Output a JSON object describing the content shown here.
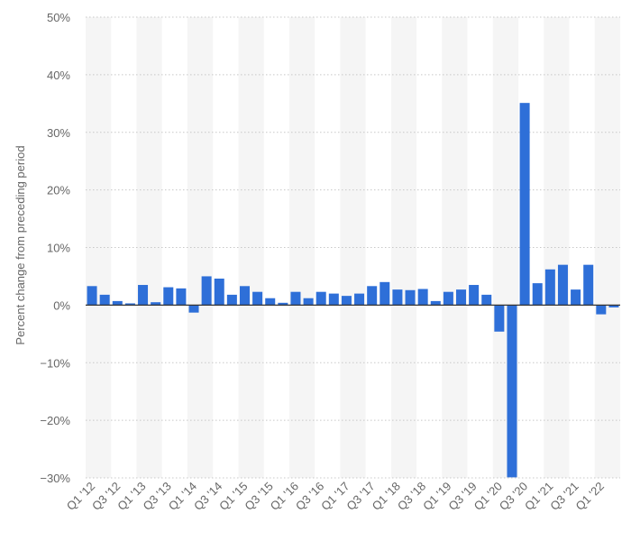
{
  "chart_data": {
    "type": "bar",
    "title": "",
    "xlabel": "",
    "ylabel": "Percent change from preceding period",
    "ylim": [
      -30,
      50
    ],
    "yticks": [
      50,
      40,
      30,
      20,
      10,
      0,
      -10,
      -20,
      -30
    ],
    "ytick_labels": [
      "50%",
      "40%",
      "30%",
      "20%",
      "10%",
      "0%",
      "−10%",
      "−20%",
      "−30%"
    ],
    "grid": true,
    "legend": "none",
    "bar_color": "#2e6fd8",
    "categories": [
      "Q1 '12",
      "Q2 '12",
      "Q3 '12",
      "Q4 '12",
      "Q1 '13",
      "Q2 '13",
      "Q3 '13",
      "Q4 '13",
      "Q1 '14",
      "Q2 '14",
      "Q3 '14",
      "Q4 '14",
      "Q1 '15",
      "Q2 '15",
      "Q3 '15",
      "Q4 '15",
      "Q1 '16",
      "Q2 '16",
      "Q3 '16",
      "Q4 '16",
      "Q1 '17",
      "Q2 '17",
      "Q3 '17",
      "Q4 '17",
      "Q1 '18",
      "Q2 '18",
      "Q3 '18",
      "Q4 '18",
      "Q1 '19",
      "Q2 '19",
      "Q3 '19",
      "Q4 '19",
      "Q1 '20",
      "Q2 '20",
      "Q3 '20",
      "Q4 '20",
      "Q1 '21",
      "Q2 '21",
      "Q3 '21",
      "Q4 '21",
      "Q1 '22",
      "Q2 '22"
    ],
    "shown_tick_labels": [
      "Q1 '12",
      "Q3 '12",
      "Q1 '13",
      "Q3 '13",
      "Q1 '14",
      "Q3 '14",
      "Q1 '15",
      "Q3 '15",
      "Q1 '16",
      "Q3 '16",
      "Q1 '17",
      "Q3 '17",
      "Q1 '18",
      "Q3 '18",
      "Q1 '19",
      "Q3 '19",
      "Q1 '20",
      "Q3 '20",
      "Q1 '21",
      "Q3 '21",
      "Q1 '22"
    ],
    "values": [
      3.3,
      1.8,
      0.7,
      0.3,
      3.5,
      0.5,
      3.1,
      2.9,
      -1.3,
      5.0,
      4.6,
      1.8,
      3.3,
      2.3,
      1.2,
      0.4,
      2.3,
      1.2,
      2.3,
      2.0,
      1.6,
      2.0,
      3.3,
      4.0,
      2.7,
      2.6,
      2.8,
      0.7,
      2.3,
      2.7,
      3.5,
      1.8,
      -4.6,
      -29.9,
      35.1,
      3.8,
      6.2,
      7.0,
      2.7,
      7.0,
      -1.6,
      -0.4
    ]
  }
}
